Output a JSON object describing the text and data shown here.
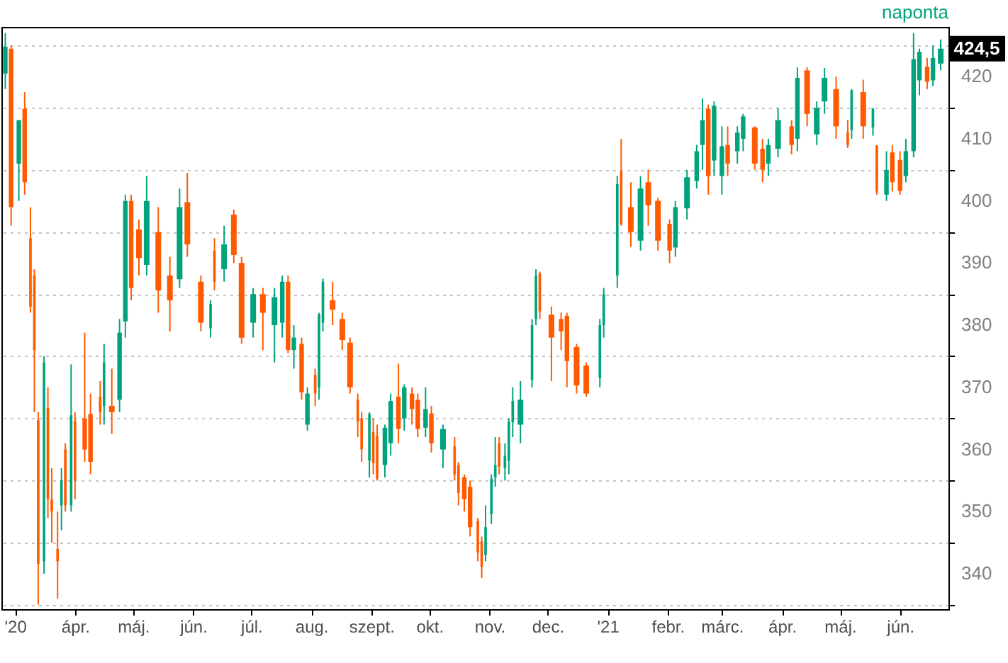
{
  "chart_data": {
    "type": "candlestick",
    "x": [
      "2020-02-25",
      "2020-02-28",
      "2020-03-03",
      "2020-03-06",
      "2020-03-09",
      "2020-03-11",
      "2020-03-13",
      "2020-03-16",
      "2020-03-18",
      "2020-03-20",
      "2020-03-23",
      "2020-03-25",
      "2020-03-27",
      "2020-03-30",
      "2020-04-01",
      "2020-04-06",
      "2020-04-09",
      "2020-04-14",
      "2020-04-16",
      "2020-04-20",
      "2020-04-24",
      "2020-04-27",
      "2020-04-30",
      "2020-05-04",
      "2020-05-08",
      "2020-05-14",
      "2020-05-20",
      "2020-05-25",
      "2020-05-29",
      "2020-06-05",
      "2020-06-10",
      "2020-06-12",
      "2020-06-17",
      "2020-06-22",
      "2020-06-26",
      "2020-07-02",
      "2020-07-07",
      "2020-07-13",
      "2020-07-17",
      "2020-07-20",
      "2020-07-23",
      "2020-07-27",
      "2020-07-30",
      "2020-08-03",
      "2020-08-05",
      "2020-08-07",
      "2020-08-12",
      "2020-08-17",
      "2020-08-21",
      "2020-08-25",
      "2020-08-27",
      "2020-08-31",
      "2020-09-02",
      "2020-09-04",
      "2020-09-08",
      "2020-09-11",
      "2020-09-15",
      "2020-09-18",
      "2020-09-22",
      "2020-09-25",
      "2020-09-29",
      "2020-10-02",
      "2020-10-08",
      "2020-10-14",
      "2020-10-16",
      "2020-10-19",
      "2020-10-22",
      "2020-10-26",
      "2020-10-28",
      "2020-10-30",
      "2020-11-02",
      "2020-11-04",
      "2020-11-06",
      "2020-11-09",
      "2020-11-11",
      "2020-11-13",
      "2020-11-17",
      "2020-11-23",
      "2020-11-25",
      "2020-11-27",
      "2020-12-03",
      "2020-12-08",
      "2020-12-11",
      "2020-12-16",
      "2020-12-21",
      "2020-12-28",
      "2020-12-30",
      "2021-01-06",
      "2021-01-08",
      "2021-01-13",
      "2021-01-18",
      "2021-01-22",
      "2021-01-27",
      "2021-02-02",
      "2021-02-05",
      "2021-02-11",
      "2021-02-16",
      "2021-02-19",
      "2021-02-22",
      "2021-02-25",
      "2021-03-01",
      "2021-03-04",
      "2021-03-09",
      "2021-03-12",
      "2021-03-18",
      "2021-03-22",
      "2021-03-25",
      "2021-03-30",
      "2021-04-06",
      "2021-04-09",
      "2021-04-14",
      "2021-04-19",
      "2021-04-23",
      "2021-04-29",
      "2021-05-05",
      "2021-05-07",
      "2021-05-13",
      "2021-05-18",
      "2021-05-20",
      "2021-05-25",
      "2021-05-28",
      "2021-06-01",
      "2021-06-04",
      "2021-06-08",
      "2021-06-11",
      "2021-06-15",
      "2021-06-18",
      "2021-06-22"
    ],
    "ohlc": [
      [
        420.5,
        427,
        418,
        424.8
      ],
      [
        424.5,
        425,
        396,
        399
      ],
      [
        406,
        413,
        400,
        413
      ],
      [
        414.8,
        417.5,
        401,
        403
      ],
      [
        394,
        399,
        382,
        383
      ],
      [
        388,
        389,
        366,
        376
      ],
      [
        364.7,
        366,
        335,
        341.6
      ],
      [
        342,
        375,
        340,
        374
      ],
      [
        366.7,
        370,
        349,
        352
      ],
      [
        352,
        357,
        345,
        350
      ],
      [
        344,
        350,
        336,
        342
      ],
      [
        351,
        357,
        347,
        355
      ],
      [
        360,
        361,
        350,
        351
      ],
      [
        351,
        373.7,
        350,
        365.5
      ],
      [
        364.6,
        366,
        352,
        355
      ],
      [
        365,
        378.8,
        358,
        360
      ],
      [
        365.7,
        369,
        356,
        358
      ],
      [
        368.5,
        371,
        364,
        366
      ],
      [
        367,
        377,
        364,
        374
      ],
      [
        367,
        373,
        362.5,
        366
      ],
      [
        368,
        381,
        366,
        378.8
      ],
      [
        380.6,
        401,
        378,
        400
      ],
      [
        400,
        401,
        384,
        386
      ],
      [
        395.4,
        397,
        388,
        390.8
      ],
      [
        389.7,
        404,
        388,
        400
      ],
      [
        395,
        399,
        382,
        385.6
      ],
      [
        388,
        391,
        379,
        384
      ],
      [
        387.4,
        402,
        386,
        399
      ],
      [
        399.8,
        404.5,
        391,
        393
      ],
      [
        387,
        388,
        379,
        380.4
      ],
      [
        379.5,
        384,
        378,
        383.4
      ],
      [
        392,
        394,
        385.6,
        387
      ],
      [
        389,
        396,
        387,
        393
      ],
      [
        397.8,
        398.6,
        390,
        391.3
      ],
      [
        390,
        391,
        377,
        378
      ],
      [
        380.4,
        386,
        378,
        385
      ],
      [
        385,
        386,
        376,
        382
      ],
      [
        380,
        386,
        374,
        384.5
      ],
      [
        380.4,
        388,
        378,
        387
      ],
      [
        387,
        388,
        375.5,
        376
      ],
      [
        376,
        380,
        373,
        378
      ],
      [
        377,
        378,
        368,
        369.2
      ],
      [
        364,
        370,
        363,
        369
      ],
      [
        372,
        373,
        367,
        369
      ],
      [
        370,
        382,
        368,
        381.7
      ],
      [
        380.4,
        387.5,
        379,
        387
      ],
      [
        384,
        387,
        380,
        382.5
      ],
      [
        381,
        382,
        376,
        377.6
      ],
      [
        377.2,
        378,
        369,
        370
      ],
      [
        368,
        369,
        362,
        364.5
      ],
      [
        365,
        366,
        358,
        360
      ],
      [
        358.2,
        366,
        355.5,
        365.7
      ],
      [
        362.8,
        365,
        356,
        357.8
      ],
      [
        362.2,
        364,
        355,
        355.3
      ],
      [
        357.5,
        364,
        355.5,
        363.5
      ],
      [
        361,
        369,
        359,
        367.8
      ],
      [
        368.5,
        373.8,
        361,
        363.3
      ],
      [
        365,
        370.5,
        363,
        370
      ],
      [
        369,
        370,
        364,
        366.5
      ],
      [
        368,
        369,
        362,
        363.3
      ],
      [
        363.5,
        370,
        362,
        366.5
      ],
      [
        365.8,
        367,
        359.5,
        361
      ],
      [
        360,
        364,
        357,
        363.3
      ],
      [
        360.5,
        362,
        355,
        356
      ],
      [
        357.5,
        358,
        351,
        353
      ],
      [
        355.5,
        356,
        350,
        352
      ],
      [
        354,
        355,
        346,
        347.5
      ],
      [
        348.5,
        349,
        342,
        343.4
      ],
      [
        345.2,
        346,
        339.3,
        341.1
      ],
      [
        343,
        351,
        342,
        347.5
      ],
      [
        349.6,
        356,
        348,
        355.3
      ],
      [
        355.5,
        362,
        354,
        357.5
      ],
      [
        361,
        362,
        356,
        357.2
      ],
      [
        357,
        361,
        355,
        359
      ],
      [
        358.2,
        365,
        356,
        364.4
      ],
      [
        364.4,
        370,
        362,
        367.8
      ],
      [
        364,
        371,
        361,
        368
      ],
      [
        371.2,
        381,
        370,
        380
      ],
      [
        381,
        389,
        380,
        388
      ],
      [
        388.3,
        388.6,
        381,
        382.2
      ],
      [
        381.7,
        383,
        371,
        378
      ],
      [
        381,
        382,
        376,
        379
      ],
      [
        381.5,
        382,
        370,
        374.2
      ],
      [
        376.5,
        377,
        369,
        370.3
      ],
      [
        373.5,
        374,
        368.5,
        369
      ],
      [
        371.5,
        381,
        370,
        380
      ],
      [
        380,
        386,
        378,
        385
      ],
      [
        388,
        404,
        386,
        402.7
      ],
      [
        404.8,
        410,
        396,
        396.3
      ],
      [
        399,
        403,
        392.6,
        395
      ],
      [
        393.6,
        404,
        392,
        402
      ],
      [
        403,
        405,
        396,
        399.3
      ],
      [
        400,
        400.5,
        392,
        393.6
      ],
      [
        396.3,
        397,
        390,
        392
      ],
      [
        392.5,
        400,
        391,
        399
      ],
      [
        398.8,
        405,
        397,
        403.8
      ],
      [
        403.2,
        409,
        402,
        408
      ],
      [
        409,
        416.5,
        405,
        413
      ],
      [
        414.8,
        415.5,
        401,
        404
      ],
      [
        406.5,
        416,
        404,
        415.3
      ],
      [
        404,
        412,
        401,
        408.8
      ],
      [
        409,
        412,
        404,
        406
      ],
      [
        408,
        412,
        406,
        411
      ],
      [
        410,
        414,
        408,
        413.6
      ],
      [
        411.8,
        412,
        405,
        406
      ],
      [
        408.4,
        410,
        403,
        405
      ],
      [
        406,
        410,
        404,
        409
      ],
      [
        408.4,
        415,
        407,
        413
      ],
      [
        412,
        413,
        407.5,
        409
      ],
      [
        410,
        421.5,
        408,
        419.8
      ],
      [
        421,
        421.5,
        412,
        414
      ],
      [
        410.7,
        416,
        409,
        415
      ],
      [
        416,
        421.4,
        414,
        419.8
      ],
      [
        418,
        420,
        410,
        412
      ],
      [
        411,
        413,
        408.5,
        409
      ],
      [
        411.4,
        418,
        410,
        417.8
      ],
      [
        417.5,
        419.5,
        410,
        412
      ],
      [
        411.8,
        415,
        410.5,
        414.8
      ],
      [
        408.9,
        409,
        401,
        401.5
      ],
      [
        401,
        408,
        400,
        405
      ],
      [
        407.8,
        409,
        401.5,
        403
      ],
      [
        406.6,
        408,
        401,
        401.6
      ],
      [
        404,
        410,
        403,
        408
      ],
      [
        408,
        427,
        407,
        422.8
      ],
      [
        419.4,
        424.5,
        417,
        424
      ],
      [
        421.6,
        423,
        418,
        419.2
      ],
      [
        419.4,
        425,
        418.5,
        423
      ],
      [
        422.1,
        426,
        421,
        424.5
      ]
    ],
    "colors": [
      "#00a37c",
      "#ff5a00",
      "#00a37c",
      "#ff5a00",
      "#ff5a00",
      "#ff5a00",
      "#ff5a00",
      "#00a37c",
      "#ff5a00",
      "#ff5a00",
      "#ff5a00",
      "#00a37c",
      "#ff5a00",
      "#00a37c",
      "#ff5a00",
      "#ff5a00",
      "#ff5a00",
      "#ff5a00",
      "#00a37c",
      "#ff5a00",
      "#00a37c",
      "#00a37c",
      "#ff5a00",
      "#ff5a00",
      "#00a37c",
      "#ff5a00",
      "#ff5a00",
      "#00a37c",
      "#ff5a00",
      "#ff5a00",
      "#00a37c",
      "#ff5a00",
      "#00a37c",
      "#ff5a00",
      "#ff5a00",
      "#00a37c",
      "#ff5a00",
      "#00a37c",
      "#00a37c",
      "#ff5a00",
      "#00a37c",
      "#ff5a00",
      "#00a37c",
      "#ff5a00",
      "#00a37c",
      "#00a37c",
      "#ff5a00",
      "#ff5a00",
      "#ff5a00",
      "#ff5a00",
      "#ff5a00",
      "#00a37c",
      "#ff5a00",
      "#ff5a00",
      "#00a37c",
      "#00a37c",
      "#ff5a00",
      "#00a37c",
      "#ff5a00",
      "#ff5a00",
      "#00a37c",
      "#ff5a00",
      "#00a37c",
      "#ff5a00",
      "#ff5a00",
      "#ff5a00",
      "#ff5a00",
      "#ff5a00",
      "#ff5a00",
      "#00a37c",
      "#00a37c",
      "#00a37c",
      "#ff5a00",
      "#00a37c",
      "#00a37c",
      "#00a37c",
      "#00a37c",
      "#00a37c",
      "#00a37c",
      "#ff5a00",
      "#ff5a00",
      "#ff5a00",
      "#ff5a00",
      "#ff5a00",
      "#ff5a00",
      "#00a37c",
      "#00a37c",
      "#00a37c",
      "#ff5a00",
      "#ff5a00",
      "#00a37c",
      "#ff5a00",
      "#ff5a00",
      "#ff5a00",
      "#00a37c",
      "#00a37c",
      "#00a37c",
      "#00a37c",
      "#ff5a00",
      "#00a37c",
      "#00a37c",
      "#ff5a00",
      "#00a37c",
      "#00a37c",
      "#ff5a00",
      "#ff5a00",
      "#00a37c",
      "#00a37c",
      "#ff5a00",
      "#00a37c",
      "#ff5a00",
      "#00a37c",
      "#00a37c",
      "#ff5a00",
      "#ff5a00",
      "#00a37c",
      "#ff5a00",
      "#00a37c",
      "#ff5a00",
      "#00a37c",
      "#ff5a00",
      "#ff5a00",
      "#00a37c",
      "#00a37c",
      "#00a37c",
      "#ff5a00",
      "#00a37c",
      "#00a37c"
    ],
    "xlim": [
      "2020-02-23",
      "2021-06-26"
    ],
    "xticks": [
      {
        "value": "2020-03-01",
        "label": "'20"
      },
      {
        "value": "2020-04-01",
        "label": "ápr."
      },
      {
        "value": "2020-05-01",
        "label": "máj."
      },
      {
        "value": "2020-06-01",
        "label": "jún."
      },
      {
        "value": "2020-07-01",
        "label": "júl."
      },
      {
        "value": "2020-08-01",
        "label": "aug."
      },
      {
        "value": "2020-09-01",
        "label": "szept."
      },
      {
        "value": "2020-10-01",
        "label": "okt."
      },
      {
        "value": "2020-11-01",
        "label": "nov."
      },
      {
        "value": "2020-12-01",
        "label": "dec."
      },
      {
        "value": "2021-01-01",
        "label": "'21"
      },
      {
        "value": "2021-02-01",
        "label": "febr."
      },
      {
        "value": "2021-03-01",
        "label": "márc."
      },
      {
        "value": "2021-04-01",
        "label": "ápr."
      },
      {
        "value": "2021-05-01",
        "label": "máj."
      },
      {
        "value": "2021-06-01",
        "label": "jún."
      }
    ],
    "ylim": [
      334.3,
      428
    ],
    "yticks": [
      {
        "value": 335,
        "label": null
      },
      340,
      {
        "value": 345,
        "label": null
      },
      350,
      {
        "value": 355,
        "label": null
      },
      360,
      {
        "value": 365,
        "label": null
      },
      370,
      {
        "value": 375,
        "label": null
      },
      380,
      {
        "value": 385,
        "label": null
      },
      390,
      {
        "value": 395,
        "label": null
      },
      400,
      {
        "value": 405,
        "label": null
      },
      410,
      {
        "value": 415,
        "label": null
      },
      420,
      {
        "value": 425,
        "label": null
      }
    ],
    "grid": "y",
    "annotations": [
      "naponta",
      "424,5"
    ]
  }
}
